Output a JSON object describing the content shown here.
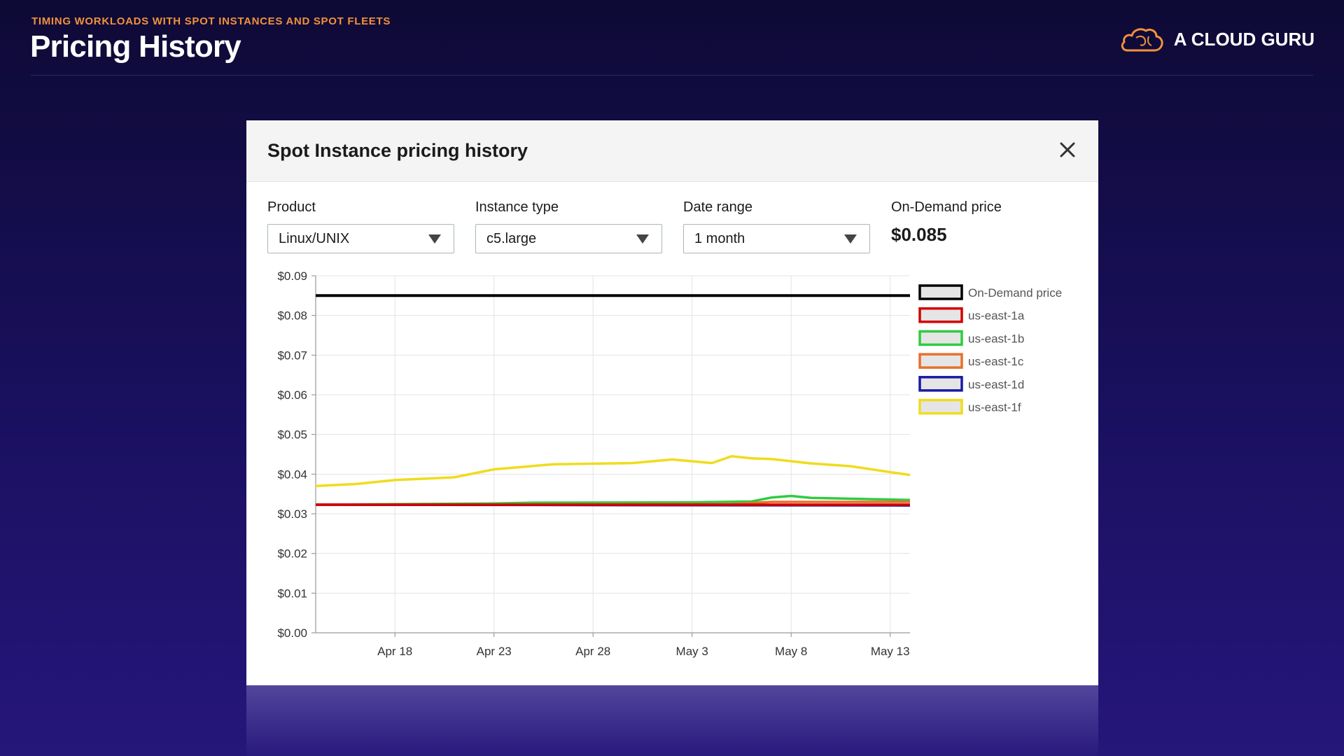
{
  "slide": {
    "kicker": "TIMING WORKLOADS WITH SPOT INSTANCES AND SPOT FLEETS",
    "title": "Pricing History",
    "logo_text": "A CLOUD GURU",
    "logo_icon": "cloud-icon",
    "accent_color": "#f2913c",
    "background_color": "#120c45"
  },
  "modal": {
    "title": "Spot Instance pricing history",
    "close_icon": "close-icon",
    "fields": {
      "product": {
        "label": "Product",
        "value": "Linux/UNIX"
      },
      "instance_type": {
        "label": "Instance type",
        "value": "c5.large"
      },
      "date_range": {
        "label": "Date range",
        "value": "1 month"
      },
      "on_demand": {
        "label": "On-Demand price",
        "value": "$0.085"
      }
    }
  },
  "chart_data": {
    "type": "line",
    "title": "",
    "xlabel": "",
    "ylabel": "",
    "x_start": "Apr 14",
    "x_end": "May 14",
    "x_ticks": [
      "Apr 18",
      "Apr 23",
      "Apr 28",
      "May 3",
      "May 8",
      "May 13"
    ],
    "y_ticks": [
      "$0.00",
      "$0.01",
      "$0.02",
      "$0.03",
      "$0.04",
      "$0.05",
      "$0.06",
      "$0.07",
      "$0.08",
      "$0.09"
    ],
    "ylim": [
      0,
      0.09
    ],
    "grid": true,
    "legend_position": "right",
    "series": [
      {
        "name": "On-Demand price",
        "color": "#000000",
        "points": [
          [
            "Apr 14",
            0.085
          ],
          [
            "May 14",
            0.085
          ]
        ]
      },
      {
        "name": "us-east-1a",
        "color": "#d40000",
        "points": [
          [
            "Apr 14",
            0.0323
          ],
          [
            "May 14",
            0.0323
          ]
        ]
      },
      {
        "name": "us-east-1b",
        "color": "#2ecc40",
        "points": [
          [
            "Apr 14",
            0.0323
          ],
          [
            "Apr 23",
            0.0326
          ],
          [
            "Apr 25",
            0.0328
          ],
          [
            "May 3",
            0.0329
          ],
          [
            "May 6",
            0.0331
          ],
          [
            "May 7",
            0.0341
          ],
          [
            "May 8",
            0.0345
          ],
          [
            "May 9",
            0.034
          ],
          [
            "May 14",
            0.0335
          ]
        ]
      },
      {
        "name": "us-east-1c",
        "color": "#e8702a",
        "points": [
          [
            "Apr 14",
            0.0323
          ],
          [
            "May 5",
            0.0324
          ],
          [
            "May 7",
            0.033
          ],
          [
            "May 14",
            0.033
          ]
        ]
      },
      {
        "name": "us-east-1d",
        "color": "#1a1aa6",
        "points": [
          [
            "Apr 14",
            0.0323
          ],
          [
            "May 14",
            0.0321
          ]
        ]
      },
      {
        "name": "us-east-1f",
        "color": "#f0dc1e",
        "points": [
          [
            "Apr 14",
            0.037
          ],
          [
            "Apr 16",
            0.0375
          ],
          [
            "Apr 18",
            0.0385
          ],
          [
            "Apr 21",
            0.0392
          ],
          [
            "Apr 23",
            0.0412
          ],
          [
            "Apr 26",
            0.0425
          ],
          [
            "Apr 30",
            0.0428
          ],
          [
            "May 2",
            0.0437
          ],
          [
            "May 4",
            0.0428
          ],
          [
            "May 5",
            0.0445
          ],
          [
            "May 6",
            0.044
          ],
          [
            "May 7",
            0.0438
          ],
          [
            "May 9",
            0.0427
          ],
          [
            "May 11",
            0.042
          ],
          [
            "May 13",
            0.0405
          ],
          [
            "May 14",
            0.0398
          ]
        ]
      }
    ]
  }
}
